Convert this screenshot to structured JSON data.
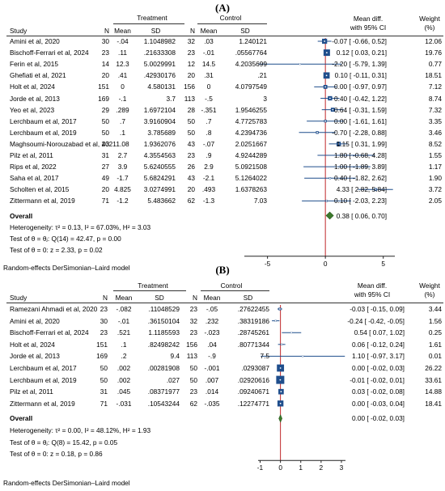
{
  "chart_data": [
    {
      "type": "forest",
      "panel_label": "(A)",
      "group_headers": {
        "treatment": "Treatment",
        "control": "Control"
      },
      "columns": [
        "Study",
        "N",
        "Mean",
        "SD",
        "N",
        "Mean",
        "SD"
      ],
      "effect_header": [
        "Mean diff.",
        "with 95% CI"
      ],
      "weight_header": [
        "Weight",
        "(%)"
      ],
      "xlim": [
        -7,
        6
      ],
      "xticks": [
        -5,
        0,
        5
      ],
      "studies": [
        {
          "study": "Amini et al, 2020",
          "n_t": "30",
          "mean_t": "-.04",
          "sd_t": "1.1048982",
          "n_c": "32",
          "mean_c": ".03",
          "sd_c": "1.240121",
          "ci_text": "-0.07 [ -0.66, 0.52]",
          "weight": "12.06",
          "md": -0.07,
          "lo": -0.66,
          "hi": 0.52,
          "w": 12.06
        },
        {
          "study": "Bischoff-Ferrari et al, 2024",
          "n_t": "23",
          "mean_t": ".11",
          "sd_t": ".21633308",
          "n_c": "23",
          "mean_c": "-.01",
          "sd_c": ".05567764",
          "ci_text": "0.12 [ 0.03, 0.21]",
          "weight": "19.76",
          "md": 0.12,
          "lo": 0.03,
          "hi": 0.21,
          "w": 19.76
        },
        {
          "study": "Ferin et al, 2015",
          "n_t": "14",
          "mean_t": "12.3",
          "sd_t": "5.0029991",
          "n_c": "12",
          "mean_c": "14.5",
          "sd_c": "4.2035699",
          "ci_text": "-2.20 [ -5.79, 1.39]",
          "weight": "0.77",
          "md": -2.2,
          "lo": -5.79,
          "hi": 1.39,
          "w": 0.77
        },
        {
          "study": "Ghefiati et al, 2021",
          "n_t": "20",
          "mean_t": ".41",
          "sd_t": ".42930176",
          "n_c": "20",
          "mean_c": ".31",
          "sd_c": ".21",
          "ci_text": "0.10 [ -0.11, 0.31]",
          "weight": "18.51",
          "md": 0.1,
          "lo": -0.11,
          "hi": 0.31,
          "w": 18.51
        },
        {
          "study": "Holt et al, 2024",
          "n_t": "151",
          "mean_t": "0",
          "sd_t": "4.580131",
          "n_c": "156",
          "mean_c": "0",
          "sd_c": "4.0797549",
          "ci_text": "0.00 [ -0.97, 0.97]",
          "weight": "7.12",
          "md": 0.0,
          "lo": -0.97,
          "hi": 0.97,
          "w": 7.12
        },
        {
          "study": "Jorde et al, 2013",
          "n_t": "169",
          "mean_t": "-.1",
          "sd_t": "3.7",
          "n_c": "113",
          "mean_c": "-.5",
          "sd_c": "3",
          "ci_text": "0.40 [ -0.42, 1.22]",
          "weight": "8.74",
          "md": 0.4,
          "lo": -0.42,
          "hi": 1.22,
          "w": 8.74
        },
        {
          "study": "Yeo et al, 2023",
          "n_t": "29",
          "mean_t": ".289",
          "sd_t": "1.6972104",
          "n_c": "28",
          "mean_c": "-.351",
          "sd_c": "1.9546255",
          "ci_text": "0.64 [ -0.31, 1.59]",
          "weight": "7.32",
          "md": 0.64,
          "lo": -0.31,
          "hi": 1.59,
          "w": 7.32
        },
        {
          "study": "Lerchbaum et al, 2017",
          "n_t": "50",
          "mean_t": ".7",
          "sd_t": "3.9160904",
          "n_c": "50",
          "mean_c": ".7",
          "sd_c": "4.7725783",
          "ci_text": "0.00 [ -1.61, 1.61]",
          "weight": "3.35",
          "md": 0.0,
          "lo": -1.61,
          "hi": 1.61,
          "w": 3.35
        },
        {
          "study": "Lerchbaum et al, 2019",
          "n_t": "50",
          "mean_t": ".1",
          "sd_t": "3.785689",
          "n_c": "50",
          "mean_c": ".8",
          "sd_c": "4.2394736",
          "ci_text": "-0.70 [ -2.28, 0.88]",
          "weight": "3.46",
          "md": -0.7,
          "lo": -2.28,
          "hi": 0.88,
          "w": 3.46
        },
        {
          "study": "Maghsoumi-Norouzabad et al, 2021",
          "n_t": "43",
          "mean_t": "1.08",
          "sd_t": "1.9362076",
          "n_c": "43",
          "mean_c": "-.07",
          "sd_c": "2.0251667",
          "ci_text": "1.15 [ 0.31, 1.99]",
          "weight": "8.52",
          "md": 1.15,
          "lo": 0.31,
          "hi": 1.99,
          "w": 8.52
        },
        {
          "study": "Pilz et al, 2011",
          "n_t": "31",
          "mean_t": "2.7",
          "sd_t": "4.3554563",
          "n_c": "23",
          "mean_c": ".9",
          "sd_c": "4.9244289",
          "ci_text": "1.80 [ -0.68, 4.28]",
          "weight": "1.55",
          "md": 1.8,
          "lo": -0.68,
          "hi": 4.28,
          "w": 1.55
        },
        {
          "study": "Rips et al, 2022",
          "n_t": "27",
          "mean_t": "3.9",
          "sd_t": "5.6240555",
          "n_c": "26",
          "mean_c": "2.9",
          "sd_c": "5.0921508",
          "ci_text": "1.00 [ -1.89, 3.89]",
          "weight": "1.17",
          "md": 1.0,
          "lo": -1.89,
          "hi": 3.89,
          "w": 1.17
        },
        {
          "study": "Saha et al, 2017",
          "n_t": "49",
          "mean_t": "-1.7",
          "sd_t": "5.6824291",
          "n_c": "43",
          "mean_c": "-2.1",
          "sd_c": "5.1264022",
          "ci_text": "0.40 [ -1.82, 2.62]",
          "weight": "1.90",
          "md": 0.4,
          "lo": -1.82,
          "hi": 2.62,
          "w": 1.9
        },
        {
          "study": "Scholten et al, 2015",
          "n_t": "20",
          "mean_t": "4.825",
          "sd_t": "3.0274991",
          "n_c": "20",
          "mean_c": ".493",
          "sd_c": "1.6378263",
          "ci_text": "4.33 [ 2.82, 5.84]",
          "weight": "3.72",
          "md": 4.33,
          "lo": 2.82,
          "hi": 5.84,
          "w": 3.72
        },
        {
          "study": "Zittermann et al, 2019",
          "n_t": "71",
          "mean_t": "-1.2",
          "sd_t": "5.483662",
          "n_c": "62",
          "mean_c": "-1.3",
          "sd_c": "7.03",
          "ci_text": "0.10 [ -2.03, 2.23]",
          "weight": "2.05",
          "md": 0.1,
          "lo": -2.03,
          "hi": 2.23,
          "w": 2.05
        }
      ],
      "overall": {
        "label": "Overall",
        "ci_text": "0.38 [ 0.06, 0.70]",
        "md": 0.38,
        "lo": 0.06,
        "hi": 0.7
      },
      "heterogeneity": "Heterogeneity: τ² = 0.13, I² = 67.03%, H² = 3.03",
      "test_theta_i": "Test of θ = θⱼ: Q(14) = 42.47, p = 0.00",
      "test_theta": "Test of θ = 0: z = 2.33, p = 0.02",
      "footnote": "Random-effects DerSimonian–Laird model"
    },
    {
      "type": "forest",
      "panel_label": "(B)",
      "group_headers": {
        "treatment": "Treatment",
        "control": "Control"
      },
      "columns": [
        "Study",
        "N",
        "Mean",
        "SD",
        "N",
        "Mean",
        "SD"
      ],
      "effect_header": [
        "Mean diff.",
        "with 95% CI"
      ],
      "weight_header": [
        "Weight",
        "(%)"
      ],
      "xlim": [
        -1.1,
        3.2
      ],
      "xticks": [
        -1,
        0,
        1,
        2,
        3
      ],
      "studies": [
        {
          "study": "Ramezani Ahmadi et al, 2020",
          "n_t": "23",
          "mean_t": "-.082",
          "sd_t": ".11048529",
          "n_c": "23",
          "mean_c": "-.05",
          "sd_c": ".27622455",
          "ci_text": "-0.03 [ -0.15, 0.09]",
          "weight": "3.44",
          "md": -0.03,
          "lo": -0.15,
          "hi": 0.09,
          "w": 3.44
        },
        {
          "study": "Amini et al, 2020",
          "n_t": "30",
          "mean_t": "-.01",
          "sd_t": ".36150104",
          "n_c": "32",
          "mean_c": ".232",
          "sd_c": ".38319186",
          "ci_text": "-0.24 [ -0.42, -0.05]",
          "weight": "1.56",
          "md": -0.24,
          "lo": -0.42,
          "hi": -0.05,
          "w": 1.56
        },
        {
          "study": "Bischoff-Ferrari et al, 2024",
          "n_t": "23",
          "mean_t": ".521",
          "sd_t": "1.1185593",
          "n_c": "23",
          "mean_c": "-.023",
          "sd_c": ".28745261",
          "ci_text": "0.54 [ 0.07, 1.02]",
          "weight": "0.25",
          "md": 0.54,
          "lo": 0.07,
          "hi": 1.02,
          "w": 0.25
        },
        {
          "study": "Holt et al, 2024",
          "n_t": "151",
          "mean_t": ".1",
          "sd_t": ".82498242",
          "n_c": "156",
          "mean_c": ".04",
          "sd_c": ".80771344",
          "ci_text": "0.06 [ -0.12, 0.24]",
          "weight": "1.61",
          "md": 0.06,
          "lo": -0.12,
          "hi": 0.24,
          "w": 1.61
        },
        {
          "study": "Jorde et al, 2013",
          "n_t": "169",
          "mean_t": ".2",
          "sd_t": "9.4",
          "n_c": "113",
          "mean_c": "-.9",
          "sd_c": "7.5",
          "ci_text": "1.10 [ -0.97, 3.17]",
          "weight": "0.01",
          "md": 1.1,
          "lo": -0.97,
          "hi": 3.17,
          "w": 0.01
        },
        {
          "study": "Lerchbaum et al, 2017",
          "n_t": "50",
          "mean_t": ".002",
          "sd_t": ".00281908",
          "n_c": "50",
          "mean_c": "-.001",
          "sd_c": ".0293087",
          "ci_text": "0.00 [ -0.02, 0.03]",
          "weight": "26.22",
          "md": 0.0,
          "lo": -0.02,
          "hi": 0.03,
          "w": 26.22
        },
        {
          "study": "Lerchbaum et al, 2019",
          "n_t": "50",
          "mean_t": ".002",
          "sd_t": ".027",
          "n_c": "50",
          "mean_c": ".007",
          "sd_c": ".02920616",
          "ci_text": "-0.01 [ -0.02, 0.01]",
          "weight": "33.61",
          "md": -0.01,
          "lo": -0.02,
          "hi": 0.01,
          "w": 33.61
        },
        {
          "study": "Pilz et al, 2011",
          "n_t": "31",
          "mean_t": ".045",
          "sd_t": ".08371977",
          "n_c": "23",
          "mean_c": ".014",
          "sd_c": ".09240671",
          "ci_text": "0.03 [ -0.02, 0.08]",
          "weight": "14.88",
          "md": 0.03,
          "lo": -0.02,
          "hi": 0.08,
          "w": 14.88
        },
        {
          "study": "Zittermann et al, 2019",
          "n_t": "71",
          "mean_t": "-.031",
          "sd_t": ".10543244",
          "n_c": "62",
          "mean_c": "-.035",
          "sd_c": ".12274771",
          "ci_text": "0.00 [ -0.03, 0.04]",
          "weight": "18.41",
          "md": 0.0,
          "lo": -0.03,
          "hi": 0.04,
          "w": 18.41
        }
      ],
      "overall": {
        "label": "Overall",
        "ci_text": "0.00 [ -0.02, 0.03]",
        "md": 0.0,
        "lo": -0.02,
        "hi": 0.03
      },
      "heterogeneity": "Heterogeneity: τ² = 0.00, I² = 48.12%, H² = 1.93",
      "test_theta_i": "Test of θ = θⱼ: Q(8) = 15.42, p = 0.05",
      "test_theta": "Test of θ = 0: z = 0.18, p = 0.86",
      "footnote": "Random-effects DerSimonian–Laird model"
    }
  ],
  "colors": {
    "square": "#1f4e8c",
    "ci_line": "#1f4e8c",
    "null_line": "#c0282a",
    "diamond": "#3c7a2c",
    "axis": "#222222"
  }
}
